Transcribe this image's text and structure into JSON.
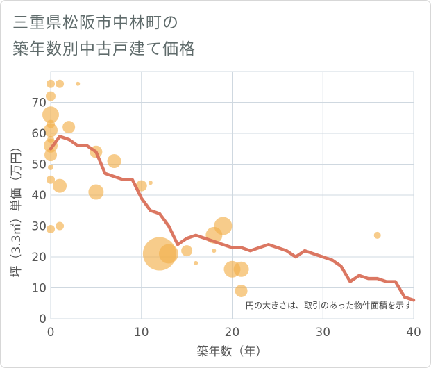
{
  "title_lines": [
    "三重県松阪市中林町の",
    "築年数別中古戸建て価格"
  ],
  "chart_data": {
    "type": "scatter",
    "title": "三重県松阪市中林町の築年数別中古戸建て価格",
    "xlabel": "築年数（年）",
    "ylabel": "坪（3.3㎡）単価（万円）",
    "xlim": [
      0,
      40
    ],
    "ylim": [
      0,
      80
    ],
    "xticks": [
      0,
      10,
      20,
      30,
      40
    ],
    "yticks": [
      0,
      10,
      20,
      30,
      40,
      50,
      60,
      70
    ],
    "grid": true,
    "note": "円の大きさは、取引のあった物件面積を示す",
    "colors": {
      "bubble": "#f2b04d",
      "line": "#d9705a",
      "grid": "#cfd8e0"
    },
    "scatter_points": [
      {
        "x": 0,
        "y": 76,
        "size": 6
      },
      {
        "x": 1,
        "y": 76,
        "size": 6
      },
      {
        "x": 3,
        "y": 76,
        "size": 3
      },
      {
        "x": 0,
        "y": 72,
        "size": 7
      },
      {
        "x": 0,
        "y": 66,
        "size": 12
      },
      {
        "x": 0,
        "y": 63,
        "size": 6
      },
      {
        "x": 0,
        "y": 61,
        "size": 10
      },
      {
        "x": 2,
        "y": 62,
        "size": 9
      },
      {
        "x": 0,
        "y": 58,
        "size": 5
      },
      {
        "x": 0,
        "y": 56,
        "size": 10
      },
      {
        "x": 0,
        "y": 53,
        "size": 9
      },
      {
        "x": 5,
        "y": 54,
        "size": 9
      },
      {
        "x": 7,
        "y": 51,
        "size": 10
      },
      {
        "x": 0,
        "y": 49,
        "size": 4
      },
      {
        "x": 0,
        "y": 45,
        "size": 6
      },
      {
        "x": 1,
        "y": 43,
        "size": 10
      },
      {
        "x": 10,
        "y": 43,
        "size": 8
      },
      {
        "x": 11,
        "y": 44,
        "size": 3
      },
      {
        "x": 5,
        "y": 41,
        "size": 11
      },
      {
        "x": 0,
        "y": 29,
        "size": 6
      },
      {
        "x": 1,
        "y": 30,
        "size": 6
      },
      {
        "x": 12,
        "y": 21,
        "size": 24
      },
      {
        "x": 13,
        "y": 21,
        "size": 14
      },
      {
        "x": 15,
        "y": 22,
        "size": 8
      },
      {
        "x": 16,
        "y": 18,
        "size": 3
      },
      {
        "x": 18,
        "y": 27,
        "size": 12
      },
      {
        "x": 19,
        "y": 30,
        "size": 13
      },
      {
        "x": 18,
        "y": 22,
        "size": 3
      },
      {
        "x": 20,
        "y": 16,
        "size": 12
      },
      {
        "x": 21,
        "y": 16,
        "size": 11
      },
      {
        "x": 21,
        "y": 9,
        "size": 9
      },
      {
        "x": 36,
        "y": 27,
        "size": 5
      }
    ],
    "trend": {
      "x": [
        0,
        1,
        2,
        3,
        4,
        5,
        6,
        7,
        8,
        9,
        10,
        11,
        12,
        13,
        14,
        15,
        16,
        17,
        18,
        19,
        20,
        21,
        22,
        23,
        24,
        25,
        26,
        27,
        28,
        29,
        30,
        31,
        32,
        33,
        34,
        35,
        36,
        37,
        38,
        39,
        40
      ],
      "y": [
        55,
        59,
        58,
        56,
        56,
        54,
        47,
        46,
        45,
        45,
        39,
        35,
        34,
        30,
        24,
        26,
        27,
        26,
        25,
        24,
        23,
        23,
        22,
        23,
        24,
        23,
        22,
        20,
        22,
        21,
        20,
        19,
        17,
        12,
        14,
        13,
        13,
        12,
        12,
        7,
        6
      ]
    }
  }
}
